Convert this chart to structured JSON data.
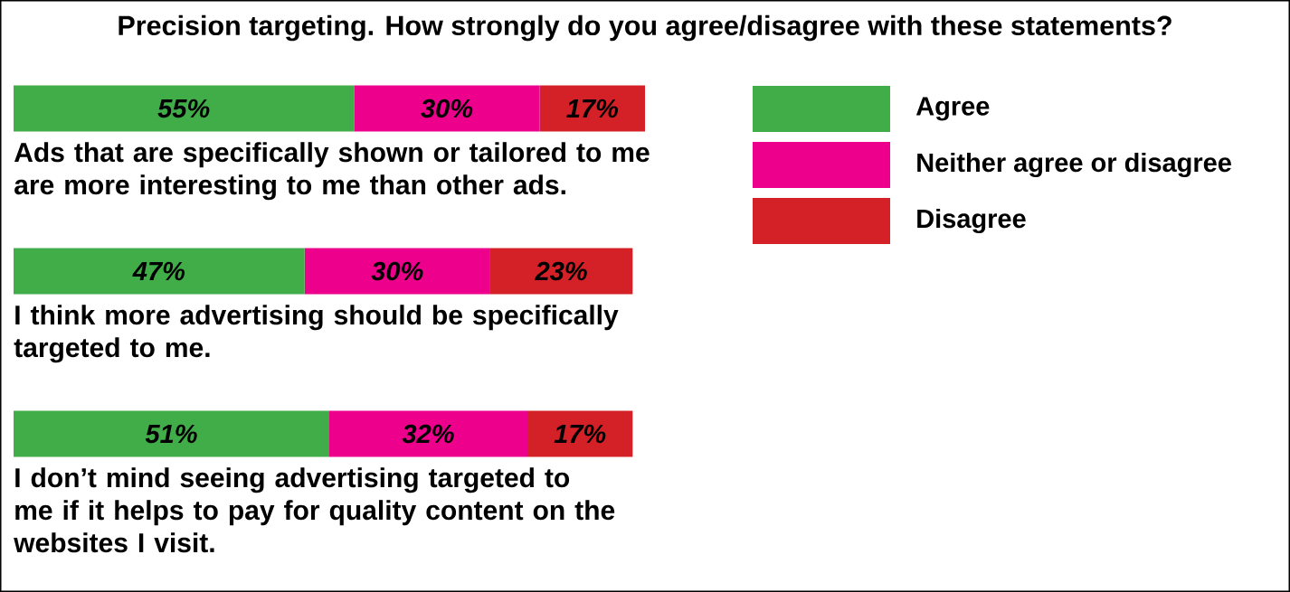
{
  "chart_data": {
    "type": "bar",
    "orientation": "horizontal",
    "stacked": true,
    "title": "Precision targeting. How strongly do you agree/disagree with these statements?",
    "categories": [
      "Ads that are specifically shown or tailored to me are more interesting to me than other ads.",
      "I think more advertising should be specifically targeted to me.",
      "I don’t mind seeing advertising targeted to me if it helps to pay for quality content on the websites I visit."
    ],
    "series": [
      {
        "name": "Agree",
        "color": "#41ad49",
        "values": [
          55,
          47,
          51
        ],
        "value_labels": [
          "55%",
          "47%",
          "51%"
        ]
      },
      {
        "name": "Neither agree or disagree",
        "color": "#ec008c",
        "values": [
          30,
          30,
          32
        ],
        "value_labels": [
          "30%",
          "30%",
          "32%"
        ]
      },
      {
        "name": "Disagree",
        "color": "#d42027",
        "values": [
          17,
          23,
          17
        ],
        "value_labels": [
          "17%",
          "23%",
          "17%"
        ]
      }
    ],
    "legend": "top right"
  }
}
